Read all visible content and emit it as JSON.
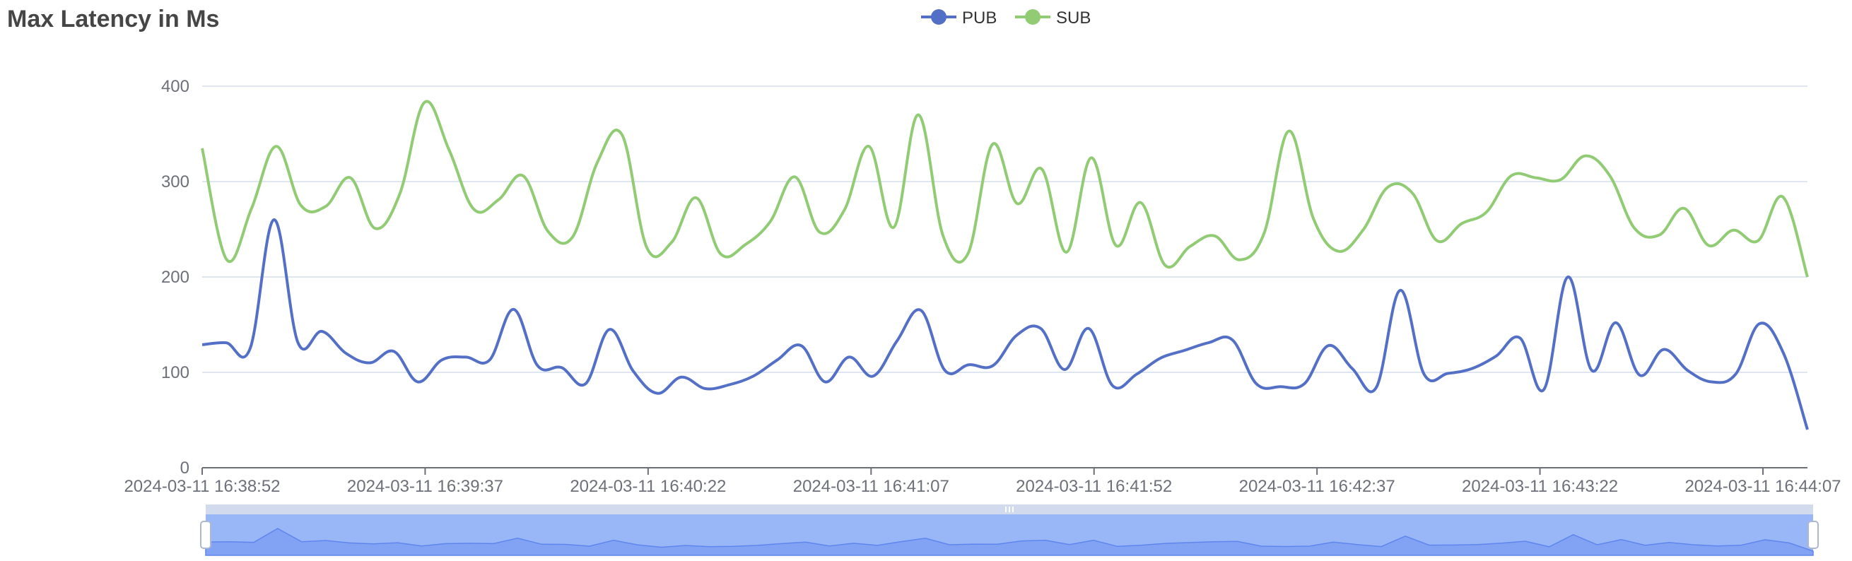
{
  "chart_data": {
    "type": "line",
    "title": "Max Latency in Ms",
    "xlabel": "",
    "ylabel": "",
    "ylim": [
      0,
      400
    ],
    "y_ticks": [
      0,
      100,
      200,
      300,
      400
    ],
    "x_tick_labels": [
      "2024-03-11 16:38:52",
      "2024-03-11 16:39:37",
      "2024-03-11 16:40:22",
      "2024-03-11 16:41:07",
      "2024-03-11 16:41:52",
      "2024-03-11 16:42:37",
      "2024-03-11 16:43:22",
      "2024-03-11 16:44:07"
    ],
    "grid": "horizontal",
    "legend_position": "top-center",
    "series": [
      {
        "name": "PUB",
        "color": "#5470c6",
        "values": [
          129,
          131,
          125,
          260,
          131,
          143,
          120,
          110,
          122,
          90,
          113,
          116,
          113,
          166,
          107,
          105,
          88,
          145,
          101,
          78,
          95,
          83,
          87,
          96,
          113,
          128,
          90,
          116,
          96,
          133,
          165,
          102,
          108,
          107,
          139,
          146,
          103,
          146,
          86,
          98,
          115,
          123,
          131,
          134,
          88,
          85,
          88,
          128,
          104,
          84,
          186,
          98,
          99,
          104,
          117,
          136,
          82,
          200,
          102,
          152,
          97,
          124,
          102,
          90,
          98,
          151,
          120,
          40
        ]
      },
      {
        "name": "SUB",
        "color": "#91cc75",
        "values": [
          335,
          218,
          272,
          337,
          275,
          274,
          304,
          251,
          287,
          383,
          333,
          271,
          281,
          306,
          248,
          242,
          320,
          349,
          231,
          236,
          283,
          224,
          234,
          258,
          305,
          247,
          270,
          337,
          252,
          370,
          243,
          224,
          339,
          277,
          313,
          226,
          325,
          233,
          278,
          212,
          232,
          243,
          218,
          246,
          353,
          261,
          227,
          249,
          294,
          288,
          238,
          256,
          268,
          306,
          304,
          302,
          327,
          306,
          251,
          244,
          272,
          233,
          249,
          238,
          284,
          200
        ]
      }
    ]
  },
  "data_zoom": {
    "range_start": 0,
    "range_end": 100,
    "handle_icon": "grip-icon"
  }
}
